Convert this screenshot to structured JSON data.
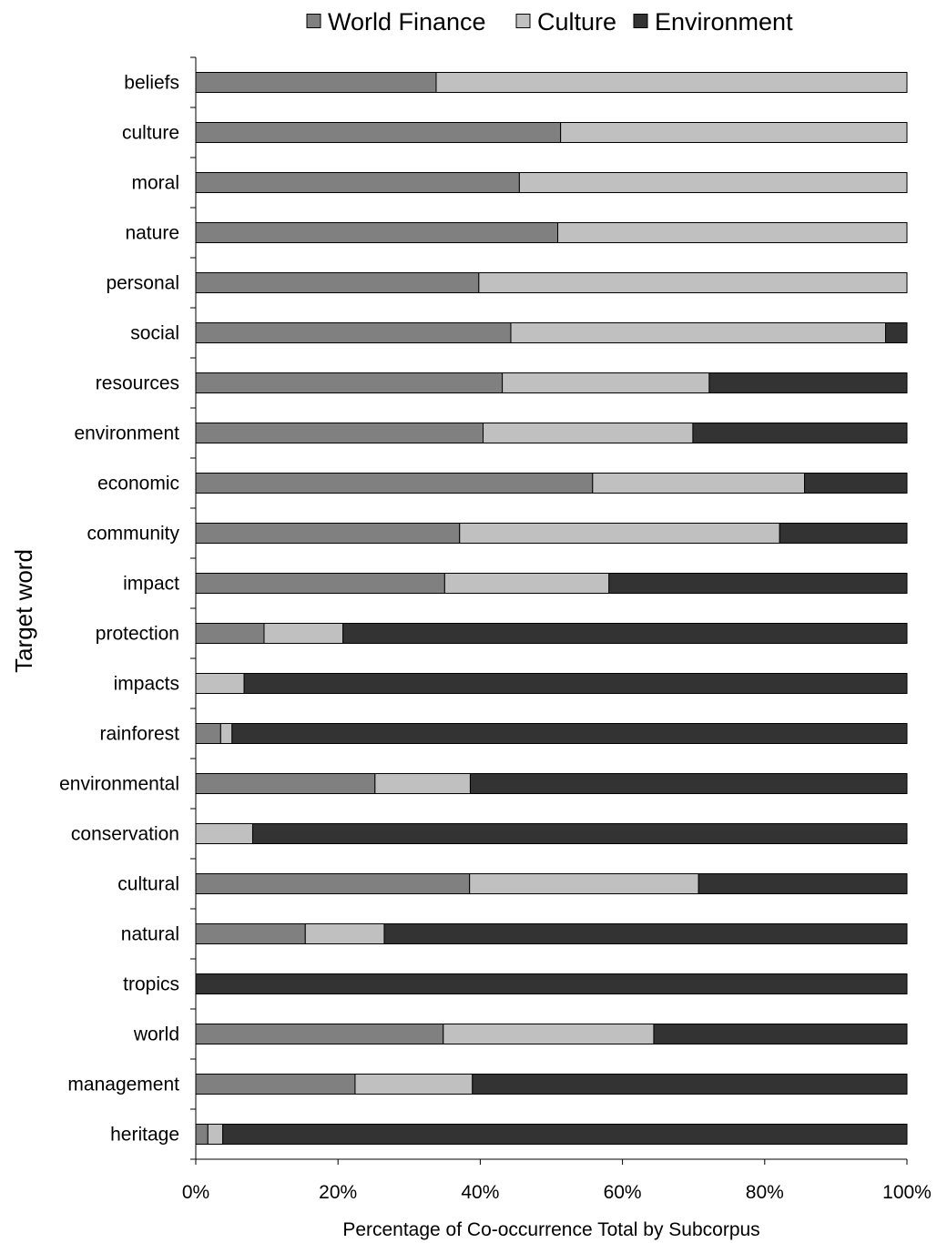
{
  "chart_data": {
    "type": "bar",
    "orientation": "horizontal",
    "stacked": true,
    "percent_stacked": true,
    "title": "",
    "xlabel": "Percentage of Co-occurrence Total by Subcorpus",
    "ylabel": "Target word",
    "xlim": [
      0,
      100
    ],
    "x_ticks": [
      "0%",
      "20%",
      "40%",
      "60%",
      "80%",
      "100%"
    ],
    "x_tick_values": [
      0,
      20,
      40,
      60,
      80,
      100
    ],
    "grid": false,
    "legend_position": "top-center",
    "categories": [
      "beliefs",
      "culture",
      "moral",
      "nature",
      "personal",
      "social",
      "resources",
      "environment",
      "economic",
      "community",
      "impact",
      "protection",
      "impacts",
      "rainforest",
      "environmental",
      "conservation",
      "cultural",
      "natural",
      "tropics",
      "world",
      "management",
      "heritage"
    ],
    "series": [
      {
        "name": "World Finance",
        "color": "#808080",
        "values": [
          33.8,
          51.3,
          45.5,
          50.9,
          39.8,
          44.3,
          43.1,
          40.4,
          55.8,
          37.1,
          35.0,
          9.6,
          0,
          3.5,
          25.2,
          0,
          38.5,
          15.4,
          0,
          34.8,
          22.4,
          1.7
        ]
      },
      {
        "name": "Culture",
        "color": "#c0c0c0",
        "values": [
          66.2,
          48.7,
          54.5,
          49.1,
          60.2,
          52.7,
          29.1,
          29.5,
          29.8,
          45.0,
          23.1,
          11.1,
          6.8,
          1.6,
          13.4,
          8.0,
          32.2,
          11.1,
          0,
          29.6,
          16.5,
          2.1
        ]
      },
      {
        "name": "Environment",
        "color": "#333333",
        "values": [
          0,
          0,
          0,
          0,
          0,
          3.0,
          27.8,
          30.1,
          14.4,
          17.9,
          41.9,
          79.3,
          93.2,
          94.9,
          61.4,
          92.0,
          29.3,
          73.5,
          100,
          35.6,
          61.1,
          96.2
        ]
      }
    ]
  }
}
